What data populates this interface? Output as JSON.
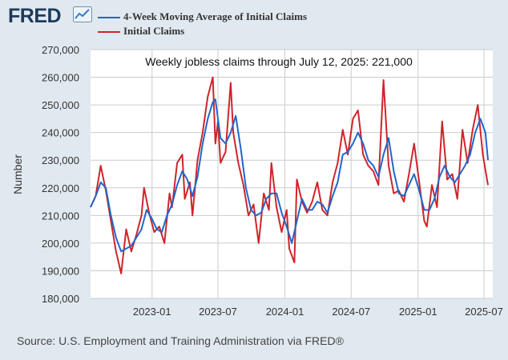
{
  "brand": {
    "name": "FRED",
    "icon": "line-chart-icon"
  },
  "source_text": "Source: U.S. Employment and Training Administration via FRED®",
  "colors": {
    "ma": "#2166cc",
    "claims": "#d0242b",
    "grid": "#c8ccd0",
    "plot_bg": "#ffffff",
    "page_bg": "#e1e9f0"
  },
  "chart_data": {
    "type": "line",
    "title": "",
    "annotation": "Weekly jobless claims through July 12, 2025: 221,000",
    "xlabel": "",
    "ylabel": "Number",
    "ylim": [
      180000,
      270000
    ],
    "yticks": [
      "180,000",
      "190,000",
      "200,000",
      "210,000",
      "220,000",
      "230,000",
      "240,000",
      "250,000",
      "260,000",
      "270,000"
    ],
    "xlim": [
      "2022-07-16",
      "2025-07-12"
    ],
    "xticks": [
      {
        "date": "2023-01-01",
        "label": "2023-01"
      },
      {
        "date": "2023-07-01",
        "label": "2023-07"
      },
      {
        "date": "2024-01-01",
        "label": "2024-01"
      },
      {
        "date": "2024-07-01",
        "label": "2024-07"
      },
      {
        "date": "2025-01-01",
        "label": "2025-01"
      },
      {
        "date": "2025-07-01",
        "label": "2025-07"
      }
    ],
    "legend_position": "top-left, above plot",
    "grid": true,
    "series": [
      {
        "name": "Initial Claims",
        "color": "#d0242b",
        "points": [
          [
            "2022-07-16",
            213000
          ],
          [
            "2022-07-30",
            217000
          ],
          [
            "2022-08-13",
            228000
          ],
          [
            "2022-08-27",
            219000
          ],
          [
            "2022-09-10",
            208000
          ],
          [
            "2022-09-24",
            197000
          ],
          [
            "2022-10-08",
            189000
          ],
          [
            "2022-10-22",
            205000
          ],
          [
            "2022-11-05",
            197000
          ],
          [
            "2022-11-19",
            203000
          ],
          [
            "2022-12-03",
            210000
          ],
          [
            "2022-12-10",
            220000
          ],
          [
            "2022-12-24",
            211000
          ],
          [
            "2023-01-07",
            204000
          ],
          [
            "2023-01-21",
            206000
          ],
          [
            "2023-02-04",
            200000
          ],
          [
            "2023-02-18",
            218000
          ],
          [
            "2023-02-25",
            213000
          ],
          [
            "2023-03-11",
            229000
          ],
          [
            "2023-03-25",
            232000
          ],
          [
            "2023-04-01",
            216000
          ],
          [
            "2023-04-15",
            222000
          ],
          [
            "2023-04-22",
            210000
          ],
          [
            "2023-05-06",
            230000
          ],
          [
            "2023-05-20",
            240000
          ],
          [
            "2023-06-03",
            253000
          ],
          [
            "2023-06-17",
            260000
          ],
          [
            "2023-06-24",
            236000
          ],
          [
            "2023-07-01",
            244000
          ],
          [
            "2023-07-08",
            229000
          ],
          [
            "2023-07-22",
            233000
          ],
          [
            "2023-08-05",
            258000
          ],
          [
            "2023-08-12",
            240000
          ],
          [
            "2023-08-26",
            229000
          ],
          [
            "2023-09-09",
            221000
          ],
          [
            "2023-09-23",
            210000
          ],
          [
            "2023-10-07",
            214000
          ],
          [
            "2023-10-21",
            200000
          ],
          [
            "2023-11-04",
            218000
          ],
          [
            "2023-11-18",
            212000
          ],
          [
            "2023-11-25",
            229000
          ],
          [
            "2023-12-09",
            213000
          ],
          [
            "2023-12-23",
            204000
          ],
          [
            "2024-01-06",
            212000
          ],
          [
            "2024-01-13",
            198000
          ],
          [
            "2024-01-27",
            193000
          ],
          [
            "2024-02-03",
            223000
          ],
          [
            "2024-02-17",
            215000
          ],
          [
            "2024-03-02",
            211000
          ],
          [
            "2024-03-16",
            215000
          ],
          [
            "2024-03-30",
            222000
          ],
          [
            "2024-04-13",
            212000
          ],
          [
            "2024-04-27",
            210000
          ],
          [
            "2024-05-11",
            222000
          ],
          [
            "2024-05-25",
            229000
          ],
          [
            "2024-06-08",
            241000
          ],
          [
            "2024-06-22",
            232000
          ],
          [
            "2024-07-06",
            245000
          ],
          [
            "2024-07-20",
            248000
          ],
          [
            "2024-08-03",
            232000
          ],
          [
            "2024-08-17",
            228000
          ],
          [
            "2024-08-31",
            226000
          ],
          [
            "2024-09-14",
            221000
          ],
          [
            "2024-09-28",
            259000
          ],
          [
            "2024-10-12",
            228000
          ],
          [
            "2024-10-26",
            218000
          ],
          [
            "2024-11-09",
            219000
          ],
          [
            "2024-11-23",
            215000
          ],
          [
            "2024-12-07",
            225000
          ],
          [
            "2024-12-21",
            236000
          ],
          [
            "2025-01-04",
            222000
          ],
          [
            "2025-01-18",
            208000
          ],
          [
            "2025-01-25",
            206000
          ],
          [
            "2025-02-08",
            221000
          ],
          [
            "2025-02-22",
            213000
          ],
          [
            "2025-03-08",
            244000
          ],
          [
            "2025-03-22",
            223000
          ],
          [
            "2025-04-05",
            225000
          ],
          [
            "2025-04-19",
            216000
          ],
          [
            "2025-05-03",
            241000
          ],
          [
            "2025-05-17",
            229000
          ],
          [
            "2025-05-31",
            241000
          ],
          [
            "2025-06-14",
            250000
          ],
          [
            "2025-06-28",
            232000
          ],
          [
            "2025-07-12",
            221000
          ]
        ]
      },
      {
        "name": "4-Week Moving Average of Initial Claims",
        "color": "#2166cc",
        "points": [
          [
            "2022-07-16",
            213000
          ],
          [
            "2022-07-30",
            217000
          ],
          [
            "2022-08-13",
            222000
          ],
          [
            "2022-08-27",
            220000
          ],
          [
            "2022-09-10",
            210000
          ],
          [
            "2022-09-24",
            202000
          ],
          [
            "2022-10-08",
            197000
          ],
          [
            "2022-10-22",
            198000
          ],
          [
            "2022-11-05",
            199000
          ],
          [
            "2022-11-19",
            202000
          ],
          [
            "2022-12-03",
            205000
          ],
          [
            "2022-12-17",
            212000
          ],
          [
            "2022-12-31",
            209000
          ],
          [
            "2023-01-14",
            205000
          ],
          [
            "2023-01-28",
            204000
          ],
          [
            "2023-02-11",
            210000
          ],
          [
            "2023-02-25",
            214000
          ],
          [
            "2023-03-11",
            221000
          ],
          [
            "2023-03-25",
            226000
          ],
          [
            "2023-04-08",
            223000
          ],
          [
            "2023-04-22",
            217000
          ],
          [
            "2023-05-06",
            224000
          ],
          [
            "2023-05-20",
            236000
          ],
          [
            "2023-06-03",
            245000
          ],
          [
            "2023-06-17",
            251000
          ],
          [
            "2023-06-24",
            252000
          ],
          [
            "2023-07-08",
            238000
          ],
          [
            "2023-07-22",
            236000
          ],
          [
            "2023-08-05",
            240000
          ],
          [
            "2023-08-19",
            246000
          ],
          [
            "2023-09-02",
            234000
          ],
          [
            "2023-09-16",
            220000
          ],
          [
            "2023-09-30",
            212000
          ],
          [
            "2023-10-14",
            210000
          ],
          [
            "2023-10-28",
            211000
          ],
          [
            "2023-11-11",
            216000
          ],
          [
            "2023-11-25",
            218000
          ],
          [
            "2023-12-09",
            218000
          ],
          [
            "2023-12-23",
            211000
          ],
          [
            "2024-01-06",
            206000
          ],
          [
            "2024-01-20",
            200000
          ],
          [
            "2024-02-03",
            208000
          ],
          [
            "2024-02-17",
            216000
          ],
          [
            "2024-03-02",
            212000
          ],
          [
            "2024-03-16",
            212000
          ],
          [
            "2024-03-30",
            215000
          ],
          [
            "2024-04-13",
            214000
          ],
          [
            "2024-04-27",
            211000
          ],
          [
            "2024-05-11",
            217000
          ],
          [
            "2024-05-25",
            222000
          ],
          [
            "2024-06-08",
            232000
          ],
          [
            "2024-06-22",
            233000
          ],
          [
            "2024-07-06",
            236000
          ],
          [
            "2024-07-20",
            240000
          ],
          [
            "2024-08-03",
            236000
          ],
          [
            "2024-08-17",
            230000
          ],
          [
            "2024-08-31",
            228000
          ],
          [
            "2024-09-14",
            224000
          ],
          [
            "2024-09-28",
            232000
          ],
          [
            "2024-10-12",
            238000
          ],
          [
            "2024-10-26",
            226000
          ],
          [
            "2024-11-09",
            218000
          ],
          [
            "2024-11-23",
            217000
          ],
          [
            "2024-12-07",
            221000
          ],
          [
            "2024-12-21",
            225000
          ],
          [
            "2025-01-04",
            219000
          ],
          [
            "2025-01-18",
            212000
          ],
          [
            "2025-02-01",
            212000
          ],
          [
            "2025-02-15",
            216000
          ],
          [
            "2025-03-01",
            224000
          ],
          [
            "2025-03-15",
            228000
          ],
          [
            "2025-03-29",
            224000
          ],
          [
            "2025-04-12",
            222000
          ],
          [
            "2025-04-26",
            225000
          ],
          [
            "2025-05-10",
            228000
          ],
          [
            "2025-05-24",
            232000
          ],
          [
            "2025-06-07",
            240000
          ],
          [
            "2025-06-21",
            245000
          ],
          [
            "2025-07-05",
            240000
          ],
          [
            "2025-07-12",
            230000
          ]
        ]
      }
    ]
  }
}
